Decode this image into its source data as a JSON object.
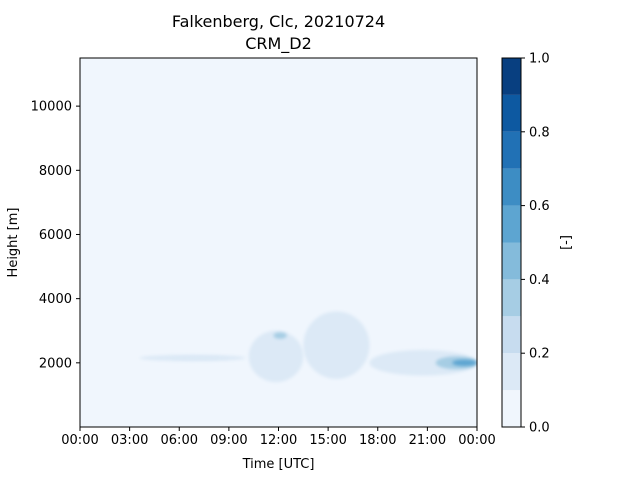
{
  "chart_data": {
    "type": "heatmap",
    "title": "Falkenberg, Clc, 20210724",
    "subtitle": "CRM_D2",
    "xlabel": "Time [UTC]",
    "ylabel": "Height [m]",
    "colorbar_label": "[-]",
    "x_ticks": [
      "00:00",
      "03:00",
      "06:00",
      "09:00",
      "12:00",
      "15:00",
      "18:00",
      "21:00",
      "00:00"
    ],
    "xlim_hours": [
      0,
      24
    ],
    "ylim": [
      0,
      11500
    ],
    "y_ticks": [
      2000,
      4000,
      6000,
      8000,
      10000
    ],
    "colorbar": {
      "range": [
        0,
        1
      ],
      "ticks": [
        "0.0",
        "0.2",
        "0.4",
        "0.6",
        "0.8",
        "1.0"
      ],
      "levels": [
        0.0,
        0.1,
        0.2,
        0.3,
        0.4,
        0.5,
        0.6,
        0.7,
        0.8,
        0.9,
        1.0
      ],
      "colors": [
        "#f0f6fd",
        "#dce9f6",
        "#c7dcef",
        "#a6cde4",
        "#84bbdb",
        "#5da5d1",
        "#3d8dc4",
        "#2171b5",
        "#0d59a1",
        "#083f80"
      ]
    },
    "cloud_regions": [
      {
        "t_start": 3.6,
        "t_end": 10.0,
        "h_bottom": 2050,
        "h_top": 2250,
        "value": 0.12
      },
      {
        "t_start": 5.5,
        "t_end": 9.0,
        "h_bottom": 2100,
        "h_top": 2200,
        "value": 0.18
      },
      {
        "t_start": 10.2,
        "t_end": 13.5,
        "h_bottom": 1400,
        "h_top": 3000,
        "value": 0.12
      },
      {
        "t_start": 11.7,
        "t_end": 12.5,
        "h_bottom": 2750,
        "h_top": 2950,
        "value": 0.35
      },
      {
        "t_start": 13.5,
        "t_end": 17.5,
        "h_bottom": 1500,
        "h_top": 3600,
        "value": 0.1
      },
      {
        "t_start": 17.5,
        "t_end": 24.0,
        "h_bottom": 1600,
        "h_top": 2400,
        "value": 0.15
      },
      {
        "t_start": 21.5,
        "t_end": 24.0,
        "h_bottom": 1800,
        "h_top": 2200,
        "value": 0.35
      },
      {
        "t_start": 22.5,
        "t_end": 24.0,
        "h_bottom": 1900,
        "h_top": 2100,
        "value": 0.55
      }
    ]
  }
}
